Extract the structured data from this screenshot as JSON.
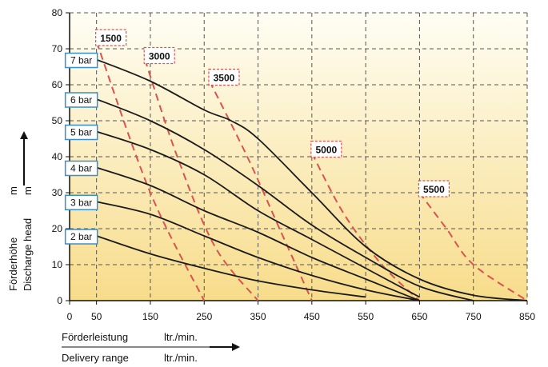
{
  "chart_data": {
    "type": "line",
    "title": "",
    "x_ticks": [
      0,
      50,
      150,
      250,
      350,
      450,
      550,
      650,
      750,
      850
    ],
    "y_ticks": [
      0,
      10,
      20,
      30,
      40,
      50,
      60,
      70,
      80
    ],
    "xlim": [
      0,
      850
    ],
    "ylim": [
      0,
      80
    ],
    "grid": true,
    "ylabel_de": "Förderhöhe",
    "ylabel_en": "Discharge head",
    "ylabel_unit": "m",
    "xlabel_de": "Förderleistung",
    "xlabel_en": "Delivery range",
    "xlabel_unit": "ltr./min.",
    "pressure_series": [
      {
        "name": "7 bar",
        "points": [
          [
            50,
            67
          ],
          [
            150,
            61
          ],
          [
            250,
            53
          ],
          [
            300,
            50
          ],
          [
            350,
            45
          ],
          [
            450,
            30
          ],
          [
            550,
            15
          ],
          [
            650,
            6
          ],
          [
            750,
            1.5
          ],
          [
            850,
            0
          ]
        ]
      },
      {
        "name": "6 bar",
        "points": [
          [
            50,
            56
          ],
          [
            150,
            50
          ],
          [
            250,
            42
          ],
          [
            350,
            32
          ],
          [
            450,
            21
          ],
          [
            550,
            12
          ],
          [
            650,
            4
          ],
          [
            750,
            0
          ]
        ]
      },
      {
        "name": "5 bar",
        "points": [
          [
            50,
            47
          ],
          [
            150,
            42
          ],
          [
            250,
            35
          ],
          [
            350,
            25
          ],
          [
            450,
            17
          ],
          [
            550,
            9
          ],
          [
            650,
            1
          ]
        ]
      },
      {
        "name": "4 bar",
        "points": [
          [
            50,
            37
          ],
          [
            150,
            32
          ],
          [
            250,
            25
          ],
          [
            350,
            19
          ],
          [
            450,
            12
          ],
          [
            550,
            6
          ],
          [
            650,
            0
          ]
        ]
      },
      {
        "name": "3 bar",
        "points": [
          [
            50,
            27.5
          ],
          [
            150,
            24
          ],
          [
            250,
            18
          ],
          [
            350,
            12
          ],
          [
            450,
            7
          ],
          [
            550,
            3
          ],
          [
            650,
            0
          ]
        ]
      },
      {
        "name": "2 bar",
        "points": [
          [
            50,
            18
          ],
          [
            150,
            13
          ],
          [
            250,
            9
          ],
          [
            350,
            5.5
          ],
          [
            450,
            3
          ],
          [
            550,
            1
          ]
        ]
      }
    ],
    "rpm_series": [
      {
        "name": "1500",
        "points": [
          [
            50,
            72
          ],
          [
            150,
            30
          ],
          [
            250,
            0
          ]
        ]
      },
      {
        "name": "3000",
        "points": [
          [
            140,
            67
          ],
          [
            200,
            40
          ],
          [
            270,
            15
          ],
          [
            350,
            0
          ]
        ]
      },
      {
        "name": "3500",
        "points": [
          [
            260,
            61
          ],
          [
            330,
            40
          ],
          [
            390,
            20
          ],
          [
            450,
            0
          ]
        ]
      },
      {
        "name": "5000",
        "points": [
          [
            450,
            41
          ],
          [
            510,
            24
          ],
          [
            580,
            10
          ],
          [
            650,
            0
          ]
        ]
      },
      {
        "name": "5500",
        "points": [
          [
            650,
            30
          ],
          [
            700,
            20
          ],
          [
            750,
            10
          ],
          [
            850,
            0
          ]
        ]
      }
    ]
  },
  "colors": {
    "bg_top": "#fffef4",
    "bg_bottom": "#f7dc8a",
    "pressure_line": "#1a1a1a",
    "rpm_line": "#d9534f",
    "pressure_box_border": "#3a8fc8",
    "rpm_box_border": "#d9534f",
    "grid": "#555555"
  }
}
